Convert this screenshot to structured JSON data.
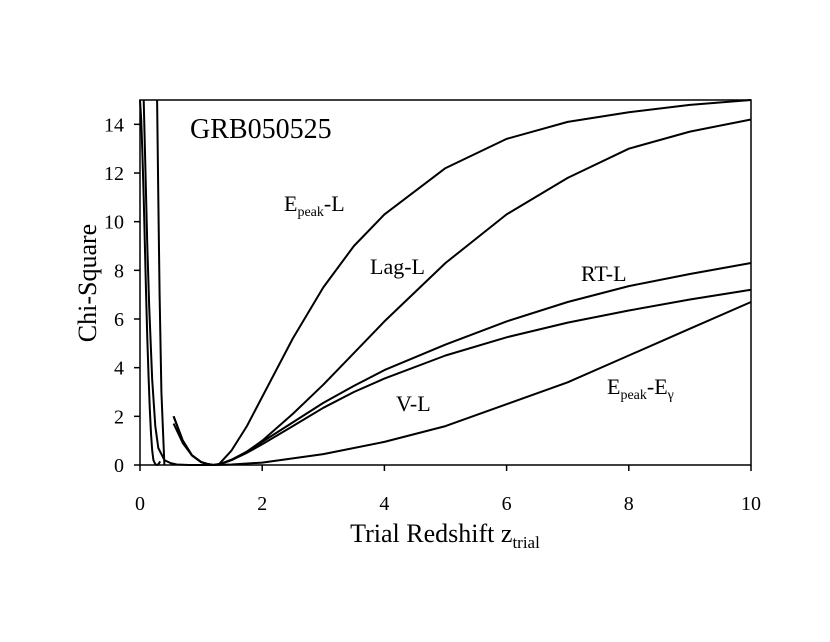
{
  "chart_data": {
    "type": "line",
    "title": "GRB050525",
    "xlabel": "Trial Redshift z",
    "xlabel_sub": "trial",
    "ylabel": "Chi-Square",
    "xlim": [
      0,
      10
    ],
    "ylim": [
      0,
      15
    ],
    "xticks": [
      0,
      2,
      4,
      6,
      8,
      10
    ],
    "yticks": [
      0,
      2,
      4,
      6,
      8,
      10,
      12,
      14
    ],
    "grid": false,
    "series": [
      {
        "name": "Epeak-L",
        "label_main": "E",
        "label_sub": "peak",
        "label_tail": "-L",
        "x": [
          0.55,
          0.7,
          0.85,
          1.0,
          1.1,
          1.2,
          1.3,
          1.5,
          1.75,
          2.0,
          2.5,
          3.0,
          3.5,
          4.0,
          5.0,
          6.0,
          7.0,
          8.0,
          9.0,
          10.0
        ],
        "y": [
          1.7,
          0.9,
          0.4,
          0.12,
          0.05,
          0.0,
          0.05,
          0.6,
          1.6,
          2.8,
          5.2,
          7.3,
          9.0,
          10.3,
          12.2,
          13.4,
          14.1,
          14.5,
          14.8,
          15.0
        ]
      },
      {
        "name": "Lag-L",
        "label_main": "Lag-L",
        "label_sub": "",
        "label_tail": "",
        "x": [
          0.55,
          0.7,
          0.85,
          1.0,
          1.1,
          1.2,
          1.3,
          1.5,
          1.75,
          2.0,
          2.5,
          3.0,
          3.5,
          4.0,
          5.0,
          6.0,
          7.0,
          8.0,
          9.0,
          10.0
        ],
        "y": [
          2.0,
          1.0,
          0.4,
          0.12,
          0.04,
          0.0,
          0.03,
          0.2,
          0.55,
          1.0,
          2.1,
          3.3,
          4.6,
          5.9,
          8.3,
          10.3,
          11.8,
          13.0,
          13.7,
          14.2
        ]
      },
      {
        "name": "RT-L",
        "label_main": "RT-L",
        "label_sub": "",
        "label_tail": "",
        "x": [
          0.55,
          0.7,
          0.85,
          1.0,
          1.1,
          1.2,
          1.3,
          1.5,
          1.75,
          2.0,
          2.5,
          3.0,
          3.5,
          4.0,
          5.0,
          6.0,
          7.0,
          8.0,
          9.0,
          10.0
        ],
        "y": [
          2.0,
          1.0,
          0.4,
          0.12,
          0.04,
          0.0,
          0.03,
          0.22,
          0.55,
          0.95,
          1.75,
          2.55,
          3.25,
          3.9,
          4.95,
          5.9,
          6.7,
          7.35,
          7.85,
          8.3
        ]
      },
      {
        "name": "V-L",
        "label_main": "V-L",
        "label_sub": "",
        "label_tail": "",
        "x": [
          0.55,
          0.7,
          0.85,
          1.0,
          1.1,
          1.2,
          1.3,
          1.5,
          1.75,
          2.0,
          2.5,
          3.0,
          3.5,
          4.0,
          5.0,
          6.0,
          7.0,
          8.0,
          9.0,
          10.0
        ],
        "y": [
          2.0,
          1.0,
          0.4,
          0.12,
          0.04,
          0.0,
          0.03,
          0.2,
          0.5,
          0.85,
          1.6,
          2.35,
          3.0,
          3.55,
          4.5,
          5.25,
          5.85,
          6.35,
          6.8,
          7.2
        ]
      },
      {
        "name": "Epeak-Egamma",
        "label_main": "E",
        "label_sub": "peak",
        "label_tail": "-E",
        "label_sub2": "γ",
        "x": [
          0.06,
          0.08,
          0.1,
          0.12,
          0.15,
          0.2,
          0.25,
          0.3,
          0.4,
          0.5,
          0.6,
          0.8,
          1.0,
          1.2,
          1.5,
          2.0,
          3.0,
          4.0,
          5.0,
          6.0,
          7.0,
          8.0,
          9.0,
          10.0
        ],
        "y": [
          15.0,
          13.0,
          11.0,
          9.0,
          6.5,
          3.5,
          1.6,
          0.7,
          0.2,
          0.08,
          0.02,
          0.0,
          0.0,
          0.0,
          0.02,
          0.1,
          0.45,
          0.95,
          1.6,
          2.5,
          3.4,
          4.5,
          5.6,
          6.7
        ]
      },
      {
        "name": "",
        "label_main": "",
        "label_sub": "",
        "label_tail": "",
        "x": [
          0.0,
          0.02,
          0.04,
          0.06,
          0.08,
          0.1,
          0.12,
          0.14,
          0.16,
          0.18,
          0.2,
          0.22,
          0.25,
          0.28,
          0.3,
          0.33
        ],
        "y": [
          15.0,
          14.2,
          12.8,
          11.0,
          9.0,
          7.0,
          5.2,
          3.6,
          2.3,
          1.3,
          0.6,
          0.2,
          0.03,
          0.0,
          0.03,
          0.15
        ]
      },
      {
        "name": "",
        "label_main": "",
        "label_sub": "",
        "label_tail": "",
        "x": [
          0.28,
          0.3,
          0.32,
          0.35,
          0.4
        ],
        "y": [
          15.0,
          11.0,
          7.0,
          3.0,
          0.0
        ]
      }
    ]
  }
}
